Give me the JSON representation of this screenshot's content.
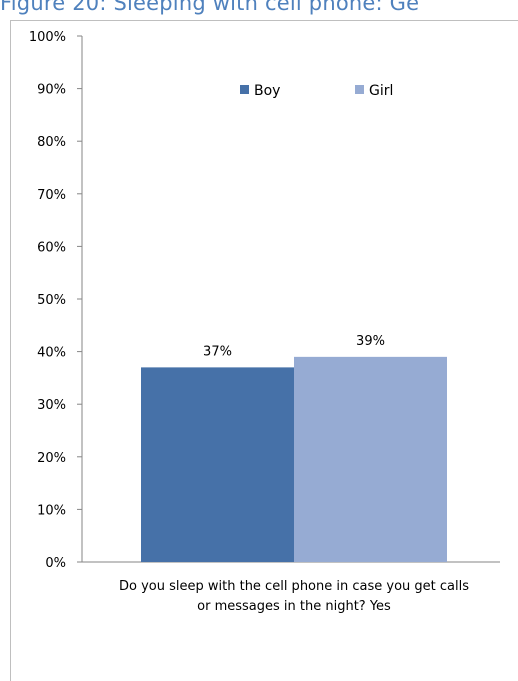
{
  "page_title": "Figure 20: Sleeping with cell phone: Ge",
  "chart_data": {
    "type": "bar",
    "categories": [
      "Do you sleep with the cell phone in case you get calls or messages in the night? Yes"
    ],
    "category_lines": [
      "Do you sleep with the cell phone in case you get calls",
      "or messages in the night? Yes"
    ],
    "series": [
      {
        "name": "Boy",
        "values": [
          0.37
        ],
        "label": "37%",
        "color": "#4671a8"
      },
      {
        "name": "Girl",
        "values": [
          0.39
        ],
        "label": "39%",
        "color": "#96abd3"
      }
    ],
    "y_ticks": [
      "0%",
      "10%",
      "20%",
      "30%",
      "40%",
      "50%",
      "60%",
      "70%",
      "80%",
      "90%",
      "100%"
    ],
    "ylim": [
      0,
      1
    ],
    "legend": "top-center",
    "grid": false
  }
}
